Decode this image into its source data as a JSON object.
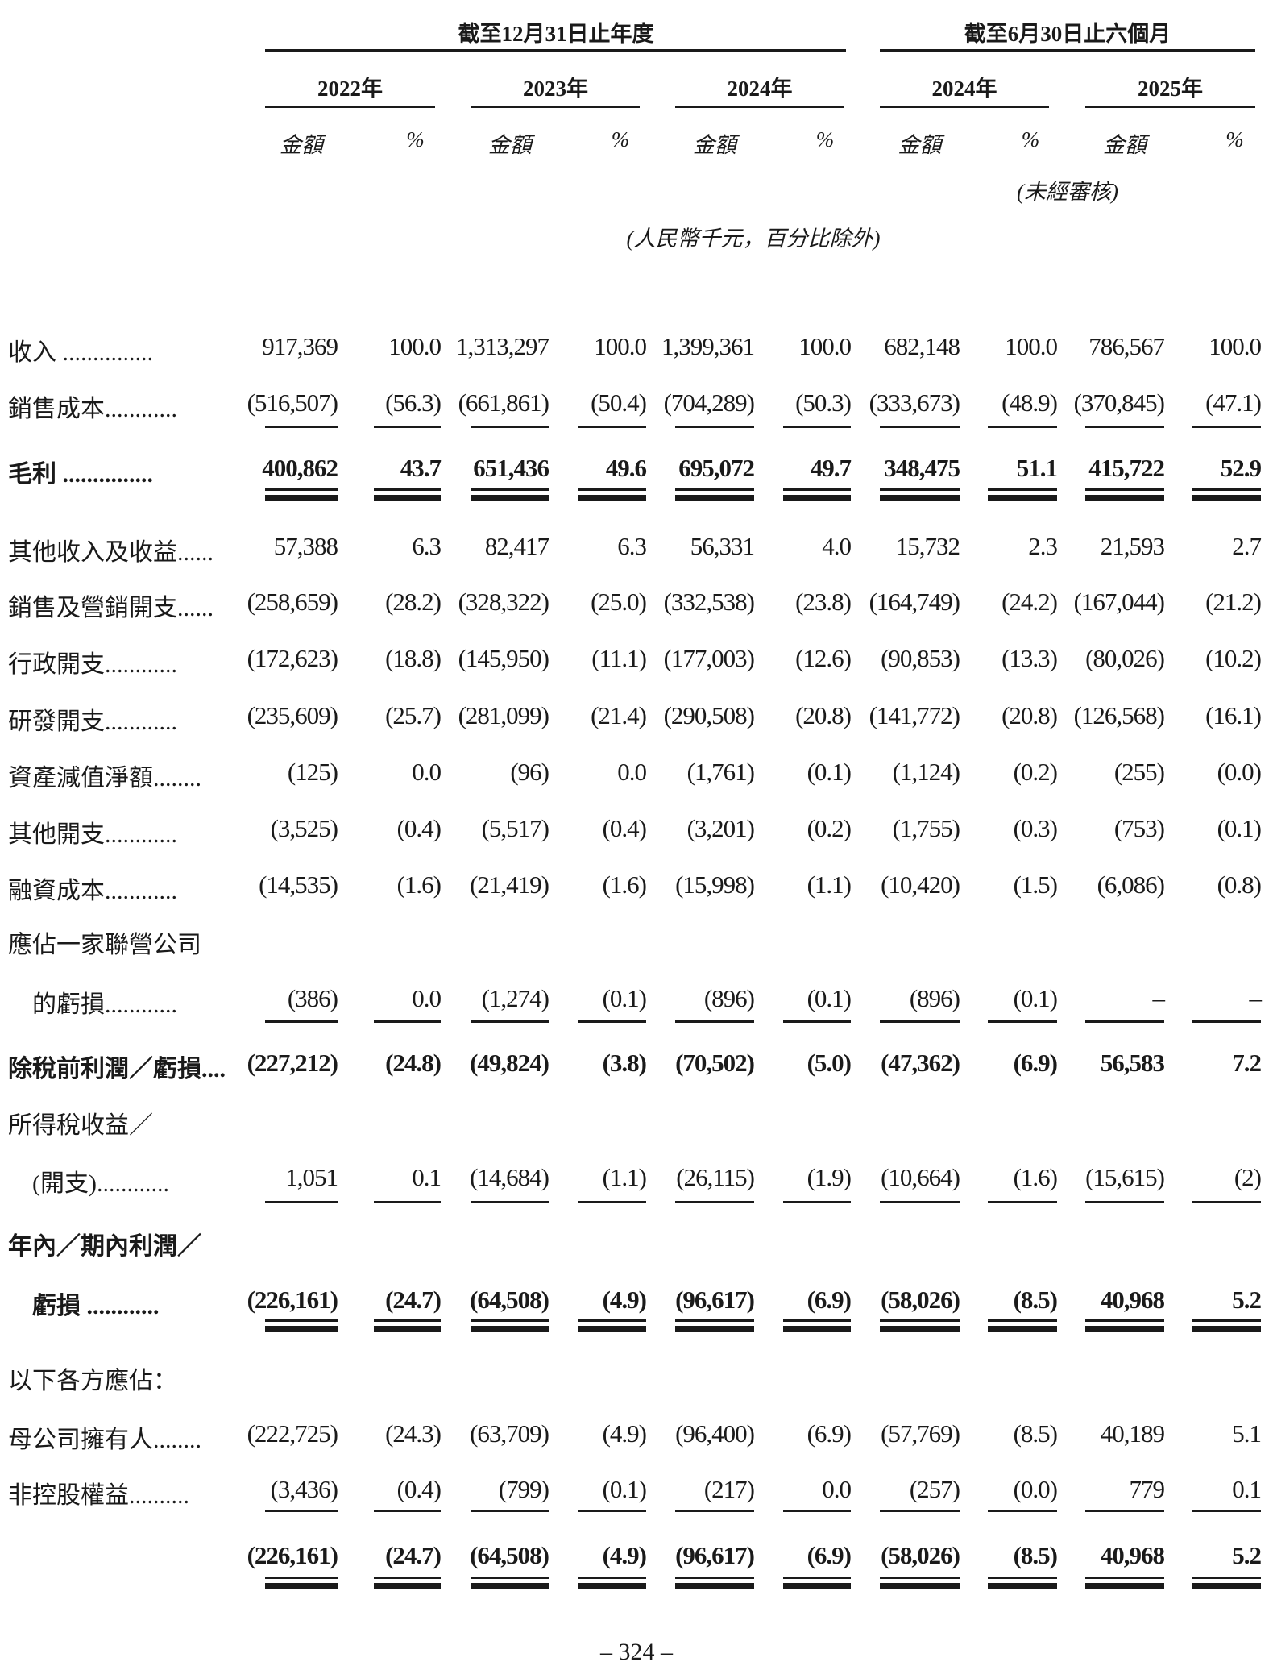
{
  "header": {
    "group_annual": "截至12月31日止年度",
    "group_halfyear": "截至6月30日止六個月",
    "years": [
      "2022年",
      "2023年",
      "2024年",
      "2024年",
      "2025年"
    ],
    "amount_label": "金額",
    "pct_label": "%",
    "unaudited": "(未經審核)",
    "unit_note": "(人民幣千元，百分比除外)"
  },
  "rows": [
    {
      "label": "收入 ...............",
      "values": [
        "917,369",
        "100.0",
        "1,313,297",
        "100.0",
        "1,399,361",
        "100.0",
        "682,148",
        "100.0",
        "786,567",
        "100.0"
      ]
    },
    {
      "label": "銷售成本............",
      "values": [
        "(516,507)",
        "(56.3)",
        "(661,861)",
        "(50.4)",
        "(704,289)",
        "(50.3)",
        "(333,673)",
        "(48.9)",
        "(370,845)",
        "(47.1)"
      ]
    },
    {
      "label": "毛利 ...............",
      "bold": true,
      "values": [
        "400,862",
        "43.7",
        "651,436",
        "49.6",
        "695,072",
        "49.7",
        "348,475",
        "51.1",
        "415,722",
        "52.9"
      ]
    },
    {
      "label": "其他收入及收益......",
      "values": [
        "57,388",
        "6.3",
        "82,417",
        "6.3",
        "56,331",
        "4.0",
        "15,732",
        "2.3",
        "21,593",
        "2.7"
      ]
    },
    {
      "label": "銷售及營銷開支......",
      "values": [
        "(258,659)",
        "(28.2)",
        "(328,322)",
        "(25.0)",
        "(332,538)",
        "(23.8)",
        "(164,749)",
        "(24.2)",
        "(167,044)",
        "(21.2)"
      ]
    },
    {
      "label": "行政開支............",
      "values": [
        "(172,623)",
        "(18.8)",
        "(145,950)",
        "(11.1)",
        "(177,003)",
        "(12.6)",
        "(90,853)",
        "(13.3)",
        "(80,026)",
        "(10.2)"
      ]
    },
    {
      "label": "研發開支............",
      "values": [
        "(235,609)",
        "(25.7)",
        "(281,099)",
        "(21.4)",
        "(290,508)",
        "(20.8)",
        "(141,772)",
        "(20.8)",
        "(126,568)",
        "(16.1)"
      ]
    },
    {
      "label": "資產減值淨額........",
      "values": [
        "(125)",
        "0.0",
        "(96)",
        "0.0",
        "(1,761)",
        "(0.1)",
        "(1,124)",
        "(0.2)",
        "(255)",
        "(0.0)"
      ]
    },
    {
      "label": "其他開支............",
      "values": [
        "(3,525)",
        "(0.4)",
        "(5,517)",
        "(0.4)",
        "(3,201)",
        "(0.2)",
        "(1,755)",
        "(0.3)",
        "(753)",
        "(0.1)"
      ]
    },
    {
      "label": "融資成本............",
      "values": [
        "(14,535)",
        "(1.6)",
        "(21,419)",
        "(1.6)",
        "(15,998)",
        "(1.1)",
        "(10,420)",
        "(1.5)",
        "(6,086)",
        "(0.8)"
      ]
    },
    {
      "label": "應佔一家聯營公司",
      "values": []
    },
    {
      "label": "　的虧損............",
      "values": [
        "(386)",
        "0.0",
        "(1,274)",
        "(0.1)",
        "(896)",
        "(0.1)",
        "(896)",
        "(0.1)",
        "–",
        "–"
      ]
    },
    {
      "label": "除稅前利潤／虧損....",
      "bold": true,
      "values": [
        "(227,212)",
        "(24.8)",
        "(49,824)",
        "(3.8)",
        "(70,502)",
        "(5.0)",
        "(47,362)",
        "(6.9)",
        "56,583",
        "7.2"
      ]
    },
    {
      "label": "所得稅收益／",
      "values": []
    },
    {
      "label": "　(開支)............",
      "values": [
        "1,051",
        "0.1",
        "(14,684)",
        "(1.1)",
        "(26,115)",
        "(1.9)",
        "(10,664)",
        "(1.6)",
        "(15,615)",
        "(2)"
      ]
    },
    {
      "label": "年內／期內利潤／",
      "bold": true,
      "values": []
    },
    {
      "label": "　虧損 ............",
      "bold": true,
      "values": [
        "(226,161)",
        "(24.7)",
        "(64,508)",
        "(4.9)",
        "(96,617)",
        "(6.9)",
        "(58,026)",
        "(8.5)",
        "40,968",
        "5.2"
      ]
    },
    {
      "label": "以下各方應佔：",
      "values": []
    },
    {
      "label": "母公司擁有人........",
      "values": [
        "(222,725)",
        "(24.3)",
        "(63,709)",
        "(4.9)",
        "(96,400)",
        "(6.9)",
        "(57,769)",
        "(8.5)",
        "40,189",
        "5.1"
      ]
    },
    {
      "label": "非控股權益..........",
      "values": [
        "(3,436)",
        "(0.4)",
        "(799)",
        "(0.1)",
        "(217)",
        "0.0",
        "(257)",
        "(0.0)",
        "779",
        "0.1"
      ]
    },
    {
      "label": "",
      "bold": true,
      "values": [
        "(226,161)",
        "(24.7)",
        "(64,508)",
        "(4.9)",
        "(96,617)",
        "(6.9)",
        "(58,026)",
        "(8.5)",
        "40,968",
        "5.2"
      ]
    }
  ],
  "page_number": "– 324 –"
}
